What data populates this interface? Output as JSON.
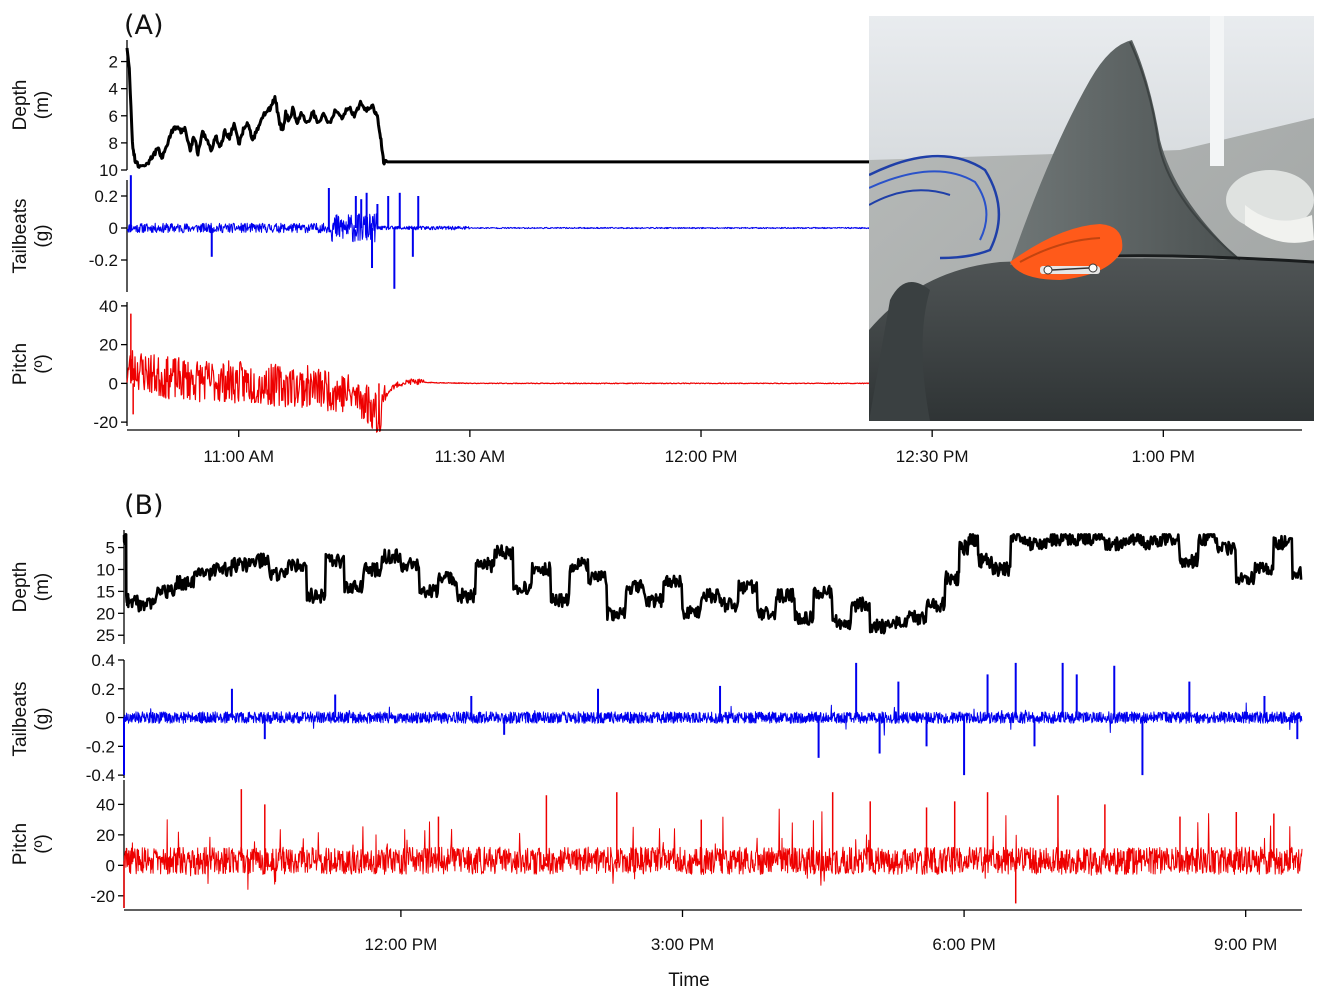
{
  "figure": {
    "panel_a_label": "(A)",
    "panel_b_label": "(B)",
    "x_axis_title": "Time",
    "inset_photo": "shark dorsal fin with orange tag"
  },
  "colors": {
    "depth": "#000000",
    "tailbeats": "#0000ee",
    "pitch": "#ee0000",
    "axis": "#000000"
  },
  "chart_data": [
    {
      "panel": "(A)",
      "type": "line",
      "x_type": "time",
      "x_ticks": [
        "11:00 AM",
        "11:30 AM",
        "12:00 PM",
        "12:30 PM",
        "1:00 PM"
      ],
      "x_tick_minutes": [
        660,
        690,
        720,
        750,
        780
      ],
      "xlim": [
        "10:45 AM",
        "1:18 PM"
      ],
      "xlim_minutes": [
        645.5,
        798.0
      ],
      "subplots": [
        {
          "name": "depth",
          "ylabel": [
            "Depth",
            "(m)"
          ],
          "inverted": true,
          "ylim": [
            10,
            1
          ],
          "yticks": [
            2,
            4,
            6,
            8,
            10
          ],
          "color": "#000000",
          "x": [
            645.5,
            645.8,
            646.2,
            646.6,
            647.3,
            648.2,
            648.8,
            649.5,
            650.0,
            650.7,
            651.3,
            651.9,
            652.5,
            653.0,
            653.7,
            654.2,
            654.7,
            655.3,
            655.9,
            656.4,
            657.0,
            657.6,
            658.2,
            658.8,
            659.4,
            660.0,
            660.6,
            661.2,
            661.8,
            662.5,
            663.1,
            663.7,
            664.2,
            664.7,
            665.3,
            665.7,
            666.1,
            666.5,
            667.0,
            667.6,
            668.2,
            668.9,
            669.6,
            670.3,
            671.0,
            671.8,
            672.6,
            673.4,
            674.2,
            675.0,
            675.8,
            676.6,
            677.4,
            678.0,
            678.4,
            678.8,
            679.3,
            680.5,
            682.0,
            700.0,
            720.0,
            740.0,
            756.0
          ],
          "y": [
            1.0,
            2.5,
            8.0,
            9.5,
            9.7,
            9.5,
            9.0,
            8.4,
            9.1,
            8.2,
            7.1,
            6.8,
            7.2,
            6.9,
            8.5,
            7.5,
            8.8,
            7.2,
            7.8,
            8.6,
            7.5,
            8.3,
            7.1,
            7.6,
            6.5,
            8.2,
            7.0,
            6.6,
            7.8,
            6.9,
            6.1,
            5.6,
            5.4,
            4.6,
            6.5,
            7.2,
            5.8,
            6.4,
            5.5,
            6.5,
            5.8,
            6.6,
            5.7,
            6.5,
            5.9,
            6.6,
            5.5,
            6.3,
            5.3,
            6.0,
            5.1,
            5.6,
            5.3,
            6.1,
            7.5,
            9.4,
            9.4,
            9.4,
            9.4,
            9.4,
            9.4,
            9.4,
            9.4
          ]
        },
        {
          "name": "tailbeats",
          "ylabel": [
            "Tailbeats",
            "(g)"
          ],
          "ylim": [
            -0.4,
            0.3
          ],
          "yticks": [
            0.2,
            0.0,
            -0.2
          ],
          "color": "#0000ee",
          "spikes_x": [
            646.0,
            656.5,
            671.7,
            675.2,
            675.9,
            676.6,
            677.3,
            678.0,
            679.4,
            680.2,
            680.9,
            682.6,
            683.3
          ],
          "spikes_y": [
            0.33,
            -0.18,
            0.25,
            0.2,
            0.18,
            0.22,
            -0.25,
            0.15,
            0.2,
            -0.38,
            0.22,
            -0.18,
            0.2
          ],
          "baseline_end": 756.0
        },
        {
          "name": "pitch",
          "ylabel": [
            "Pitch",
            "(º)"
          ],
          "ylim": [
            -22,
            42
          ],
          "yticks": [
            40,
            20,
            0,
            -20
          ],
          "color": "#ee0000",
          "trend_x": [
            645.5,
            646.2,
            650.0,
            655.0,
            660.0,
            665.0,
            670.0,
            674.0,
            676.0,
            677.7,
            678.1,
            678.6,
            679.3,
            680.0,
            681.0,
            682.5,
            684.0,
            690.0,
            756.0
          ],
          "trend_y": [
            6.0,
            8.0,
            3.0,
            1.5,
            0.5,
            -1.0,
            -2.0,
            -5.0,
            -8.0,
            -14.0,
            -17.0,
            -11.0,
            -5.0,
            -2.0,
            0.0,
            1.0,
            0.5,
            0.0,
            0.0
          ],
          "extremes_x": [
            646.0,
            646.3,
            678.2
          ],
          "extremes_y": [
            36.0,
            -16.0,
            -21.0
          ]
        }
      ]
    },
    {
      "panel": "(B)",
      "type": "line",
      "x_type": "time",
      "x_title": "Time",
      "x_ticks": [
        "12:00 PM",
        "3:00 PM",
        "6:00 PM",
        "9:00 PM"
      ],
      "x_tick_hours": [
        12,
        15,
        18,
        21
      ],
      "xlim_hours": [
        9.05,
        21.6
      ],
      "subplots": [
        {
          "name": "depth",
          "ylabel": [
            "Depth",
            "(m)"
          ],
          "inverted": true,
          "ylim": [
            27,
            1
          ],
          "yticks": [
            5,
            10,
            15,
            20,
            25
          ],
          "color": "#000000",
          "x": [
            9.05,
            9.1,
            9.3,
            9.5,
            9.7,
            9.9,
            10.1,
            10.3,
            10.5,
            10.7,
            10.9,
            11.1,
            11.3,
            11.5,
            11.7,
            11.9,
            12.1,
            12.3,
            12.5,
            12.7,
            12.9,
            13.1,
            13.3,
            13.5,
            13.7,
            13.9,
            14.1,
            14.3,
            14.5,
            14.7,
            14.9,
            15.1,
            15.3,
            15.5,
            15.7,
            15.9,
            16.1,
            16.3,
            16.5,
            16.7,
            16.9,
            17.1,
            17.3,
            17.5,
            17.7,
            17.9,
            18.0,
            18.1,
            18.2,
            18.4,
            18.6,
            18.8,
            19.0,
            19.2,
            19.4,
            19.6,
            19.8,
            20.0,
            20.2,
            20.4,
            20.6,
            20.8,
            21.0,
            21.2,
            21.4,
            21.6
          ],
          "y": [
            3.0,
            17.0,
            18.0,
            15.0,
            13.0,
            11.0,
            10.0,
            9.0,
            8.0,
            11.0,
            9.0,
            16.0,
            8.0,
            14.0,
            10.0,
            7.0,
            9.0,
            15.0,
            12.0,
            16.0,
            9.0,
            6.0,
            14.0,
            10.0,
            17.0,
            9.0,
            12.0,
            20.0,
            14.0,
            17.0,
            13.0,
            20.0,
            16.0,
            18.0,
            14.0,
            20.0,
            16.0,
            21.0,
            15.0,
            22.0,
            18.0,
            23.0,
            22.0,
            21.0,
            18.0,
            12.0,
            5.0,
            3.0,
            8.0,
            10.0,
            3.0,
            4.0,
            3.0,
            3.0,
            3.0,
            4.0,
            3.0,
            4.0,
            3.0,
            8.0,
            3.0,
            5.0,
            12.0,
            10.0,
            4.0,
            11.0
          ]
        },
        {
          "name": "tailbeats",
          "ylabel": [
            "Tailbeats",
            "(g)"
          ],
          "ylim": [
            -0.42,
            0.4
          ],
          "yticks": [
            0.4,
            0.2,
            0.0,
            -0.2,
            -0.4
          ],
          "color": "#0000ee",
          "spikes_x": [
            9.05,
            10.2,
            10.55,
            11.3,
            12.75,
            13.1,
            14.1,
            15.4,
            16.45,
            16.85,
            17.1,
            17.3,
            17.6,
            18.0,
            18.25,
            18.55,
            18.75,
            19.05,
            19.2,
            19.6,
            19.9,
            20.4,
            21.2,
            21.55
          ],
          "spikes_y": [
            -0.4,
            0.2,
            -0.15,
            0.16,
            0.15,
            -0.12,
            0.2,
            0.22,
            -0.28,
            0.38,
            -0.25,
            0.25,
            -0.2,
            -0.4,
            0.3,
            0.38,
            -0.2,
            0.38,
            0.3,
            0.36,
            -0.4,
            0.25,
            0.15,
            -0.15
          ]
        },
        {
          "name": "pitch",
          "ylabel": [
            "Pitch",
            "(º)"
          ],
          "ylim": [
            -28,
            56
          ],
          "yticks": [
            40,
            20,
            0,
            -20
          ],
          "color": "#ee0000",
          "mean": 3.0,
          "extremes_x": [
            9.05,
            10.3,
            10.55,
            12.4,
            13.55,
            14.3,
            15.2,
            16.6,
            17.0,
            17.6,
            17.9,
            18.25,
            18.55,
            19.0,
            19.5,
            20.3,
            20.9,
            21.3
          ],
          "extremes_y": [
            -28.0,
            50.0,
            40.0,
            32.0,
            46.0,
            48.0,
            30.0,
            48.0,
            42.0,
            38.0,
            42.0,
            48.0,
            -25.0,
            46.0,
            40.0,
            32.0,
            35.0,
            34.0
          ]
        }
      ]
    }
  ]
}
